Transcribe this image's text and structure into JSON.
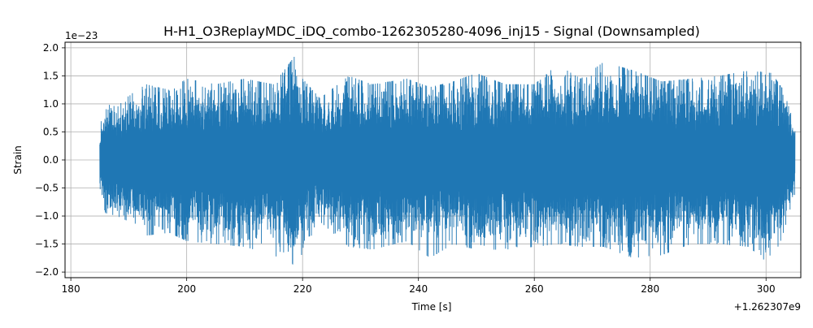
{
  "chart_data": {
    "type": "line",
    "title": "H-H1_O3ReplayMDC_iDQ_combo-1262305280-4096_inj15 - Signal (Downsampled)",
    "xlabel": "Time [s]",
    "ylabel": "Strain",
    "x_offset_label": "+1.262307e9",
    "y_scale_label": "1e−23",
    "xlim": [
      179,
      306
    ],
    "ylim": [
      -2.1,
      2.1
    ],
    "xticks": [
      180,
      200,
      220,
      240,
      260,
      280,
      300
    ],
    "xtick_labels": [
      "180",
      "200",
      "220",
      "240",
      "260",
      "280",
      "300"
    ],
    "yticks": [
      -2.0,
      -1.5,
      -1.0,
      -0.5,
      0.0,
      0.5,
      1.0,
      1.5,
      2.0
    ],
    "ytick_labels": [
      "−2.0",
      "−1.5",
      "−1.0",
      "−0.5",
      "0.0",
      "0.5",
      "1.0",
      "1.5",
      "2.0"
    ],
    "grid": true,
    "series": [
      {
        "color": "#1f77b4",
        "x_start": 185.0,
        "x_end": 305.0,
        "envelope": {
          "x": [
            185,
            186,
            188,
            190,
            193,
            197,
            200,
            205,
            210,
            215,
            219,
            220,
            223,
            228,
            232,
            238,
            242,
            246,
            250,
            255,
            260,
            264,
            268,
            272,
            277,
            282,
            287,
            292,
            297,
            301,
            303,
            305
          ],
          "y_max": [
            0.6,
            1.0,
            0.95,
            1.15,
            1.35,
            1.25,
            1.45,
            1.35,
            1.45,
            1.35,
            1.9,
            1.45,
            1.1,
            1.5,
            1.35,
            1.45,
            1.3,
            1.4,
            1.55,
            1.35,
            1.35,
            1.7,
            1.45,
            1.75,
            1.6,
            1.4,
            1.45,
            1.5,
            1.6,
            1.55,
            1.25,
            0.6
          ],
          "y_min": [
            -0.6,
            -0.95,
            -1.0,
            -1.1,
            -1.35,
            -1.3,
            -1.45,
            -1.5,
            -1.55,
            -1.7,
            -1.9,
            -1.65,
            -1.1,
            -1.55,
            -1.6,
            -1.45,
            -1.75,
            -1.5,
            -1.6,
            -1.6,
            -1.55,
            -1.5,
            -1.55,
            -1.55,
            -1.75,
            -1.7,
            -1.5,
            -1.5,
            -1.55,
            -1.9,
            -1.3,
            -0.6
          ]
        }
      }
    ]
  }
}
